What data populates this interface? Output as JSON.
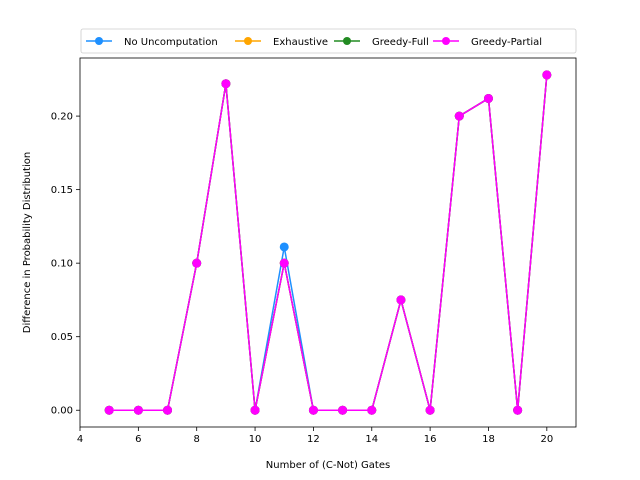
{
  "chart_data": {
    "type": "line",
    "title": "",
    "xlabel": "Number of (C-Not) Gates",
    "ylabel": "Difference in Probability Distribution",
    "xlim": [
      4,
      21
    ],
    "ylim": [
      -0.0114,
      0.2395
    ],
    "xticks": [
      4,
      6,
      8,
      10,
      12,
      14,
      16,
      18,
      20
    ],
    "yticks": [
      0.0,
      0.05,
      0.1,
      0.15,
      0.2
    ],
    "ytick_labels": [
      "0.00",
      "0.05",
      "0.10",
      "0.15",
      "0.20"
    ],
    "grid": false,
    "legend_position": "top",
    "x": [
      5,
      6,
      7,
      8,
      9,
      10,
      11,
      12,
      13,
      14,
      15,
      16,
      17,
      18,
      19,
      20
    ],
    "series": [
      {
        "name": "No Uncomputation",
        "color": "#1e90ff",
        "marker": "circle",
        "values": [
          0,
          0,
          0,
          0.1,
          0.222,
          0,
          0.111,
          0,
          0,
          0,
          0.075,
          0,
          0.2,
          0.212,
          0,
          0.228
        ]
      },
      {
        "name": "Exhaustive",
        "color": "#ffa500",
        "marker": "circle",
        "values": [
          0,
          0,
          0,
          0.1,
          0.222,
          0,
          0.1,
          0,
          0,
          0,
          0.075,
          0,
          0.2,
          0.212,
          0,
          0.228
        ]
      },
      {
        "name": "Greedy-Full",
        "color": "#228b22",
        "marker": "circle",
        "values": [
          0,
          0,
          0,
          0.1,
          0.222,
          0,
          0.1,
          0,
          0,
          0,
          0.075,
          0,
          0.2,
          0.212,
          0,
          0.228
        ]
      },
      {
        "name": "Greedy-Partial",
        "color": "#ff00ff",
        "marker": "circle",
        "values": [
          0,
          0,
          0,
          0.1,
          0.222,
          0,
          0.1,
          0,
          0,
          0,
          0.075,
          0,
          0.2,
          0.212,
          0,
          0.228
        ]
      }
    ]
  }
}
